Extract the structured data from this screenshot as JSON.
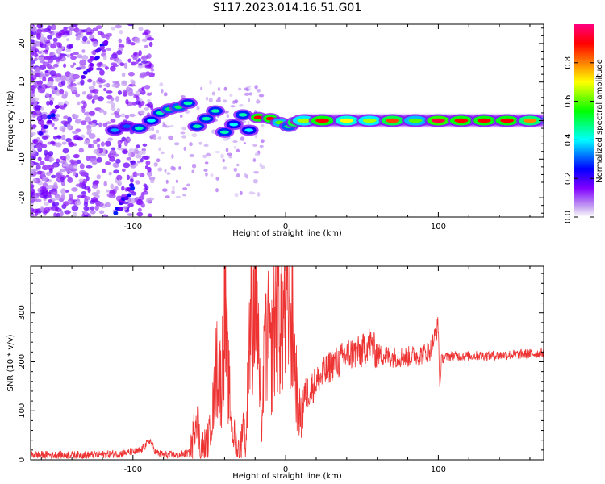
{
  "title": "S117.2023.014.16.51.G01",
  "chart_data": [
    {
      "type": "heatmap",
      "xlabel": "Height of straight line (km)",
      "ylabel": "Frequency (Hz)",
      "xlim": [
        -167,
        169
      ],
      "ylim": [
        -25,
        25
      ],
      "x_ticks": [
        -100,
        0,
        100
      ],
      "y_ticks": [
        -20,
        -10,
        0,
        10,
        20
      ],
      "colorbar": {
        "label": "Normalized spectral amplitude",
        "range": [
          0,
          1
        ],
        "ticks": [
          "0.0",
          "0.2",
          "0.4",
          "0.6",
          "0.8"
        ],
        "colormap": [
          "#ffffff",
          "#c8a8f0",
          "#8000ff",
          "#0000ff",
          "#00ffff",
          "#00ff00",
          "#ffff00",
          "#ff8000",
          "#ff0000",
          "#ff0080"
        ]
      },
      "ridge": [
        {
          "x": -112,
          "f": -2.5,
          "a": 0.35
        },
        {
          "x": -104,
          "f": -1.5,
          "a": 0.3
        },
        {
          "x": -96,
          "f": -2.0,
          "a": 0.45
        },
        {
          "x": -88,
          "f": 0.0,
          "a": 0.4
        },
        {
          "x": -82,
          "f": 2.0,
          "a": 0.45
        },
        {
          "x": -76,
          "f": 3.0,
          "a": 0.5
        },
        {
          "x": -70,
          "f": 3.5,
          "a": 0.5
        },
        {
          "x": -64,
          "f": 4.5,
          "a": 0.45
        },
        {
          "x": -58,
          "f": -1.5,
          "a": 0.45
        },
        {
          "x": -52,
          "f": 0.5,
          "a": 0.45
        },
        {
          "x": -46,
          "f": 2.5,
          "a": 0.45
        },
        {
          "x": -40,
          "f": -3.0,
          "a": 0.45
        },
        {
          "x": -34,
          "f": -1.0,
          "a": 0.4
        },
        {
          "x": -28,
          "f": 1.5,
          "a": 0.45
        },
        {
          "x": -24,
          "f": -2.5,
          "a": 0.4
        },
        {
          "x": -18,
          "f": 0.8,
          "a": 0.9
        },
        {
          "x": -10,
          "f": 0.5,
          "a": 0.9
        },
        {
          "x": -4,
          "f": -0.5,
          "a": 0.6
        },
        {
          "x": 2,
          "f": -1.5,
          "a": 0.5
        },
        {
          "x": 6,
          "f": -0.5,
          "a": 0.85
        },
        {
          "x": 12,
          "f": 0.0,
          "a": 0.65
        },
        {
          "x": 24,
          "f": 0.0,
          "a": 0.9
        },
        {
          "x": 40,
          "f": 0.0,
          "a": 0.7
        },
        {
          "x": 55,
          "f": 0.0,
          "a": 0.65
        },
        {
          "x": 70,
          "f": 0.0,
          "a": 0.85
        },
        {
          "x": 85,
          "f": 0.0,
          "a": 0.6
        },
        {
          "x": 100,
          "f": 0.0,
          "a": 0.95
        },
        {
          "x": 115,
          "f": 0.0,
          "a": 0.9
        },
        {
          "x": 130,
          "f": 0.0,
          "a": 0.9
        },
        {
          "x": 145,
          "f": 0.0,
          "a": 0.9
        },
        {
          "x": 160,
          "f": 0.0,
          "a": 0.8
        }
      ]
    },
    {
      "type": "line",
      "xlabel": "Height of straight line (km)",
      "ylabel": "SNR (10 * v/v)",
      "xlim": [
        -167,
        169
      ],
      "ylim": [
        0,
        395
      ],
      "x_ticks": [
        -100,
        0,
        100
      ],
      "y_ticks": [
        0,
        100,
        200,
        300
      ],
      "line_color": "#ee3333",
      "x": [
        -167,
        -150,
        -130,
        -110,
        -95,
        -89,
        -85,
        -80,
        -70,
        -62,
        -58,
        -56,
        -52,
        -50,
        -47,
        -45,
        -42,
        -40,
        -38,
        -35,
        -32,
        -30,
        -28,
        -26,
        -24,
        -22,
        -20,
        -18,
        -16,
        -14,
        -12,
        -10,
        -8,
        -6,
        -3,
        0,
        3,
        6,
        8,
        10,
        12,
        15,
        18,
        25,
        30,
        35,
        40,
        50,
        55,
        60,
        70,
        80,
        90,
        95,
        100,
        101,
        102,
        105,
        110,
        120,
        130,
        140,
        150,
        160,
        169
      ],
      "y": [
        10,
        10,
        10,
        12,
        18,
        40,
        15,
        10,
        10,
        15,
        110,
        20,
        30,
        50,
        120,
        200,
        150,
        330,
        180,
        60,
        30,
        10,
        80,
        20,
        250,
        300,
        395,
        240,
        50,
        200,
        260,
        200,
        240,
        330,
        280,
        310,
        320,
        200,
        120,
        80,
        130,
        140,
        150,
        175,
        195,
        200,
        215,
        220,
        240,
        215,
        210,
        210,
        215,
        225,
        275,
        140,
        205,
        210,
        212,
        212,
        213,
        213,
        215,
        216,
        218
      ]
    }
  ]
}
